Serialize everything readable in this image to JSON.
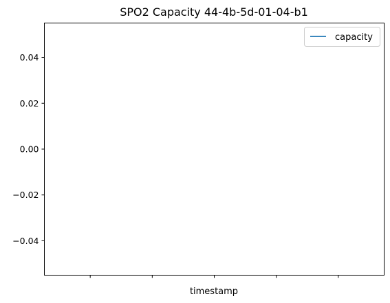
{
  "chart_data": {
    "type": "line",
    "title": "SPO2 Capacity 44-4b-5d-01-04-b1",
    "xlabel": "timestamp",
    "ylabel": "",
    "ylim": [
      -0.055,
      0.055
    ],
    "y_ticks": [
      0.04,
      0.02,
      0.0,
      -0.02,
      -0.04
    ],
    "y_tick_labels": [
      "0.04",
      "0.02",
      "0.00",
      "−0.02",
      "−0.04"
    ],
    "x_tick_count": 5,
    "x_tick_labels": [
      "",
      "",
      "",
      "",
      ""
    ],
    "grid": false,
    "legend_position": "top-right",
    "series": [
      {
        "name": "capacity",
        "color": "#1f77b4",
        "x": [],
        "y": []
      }
    ]
  }
}
